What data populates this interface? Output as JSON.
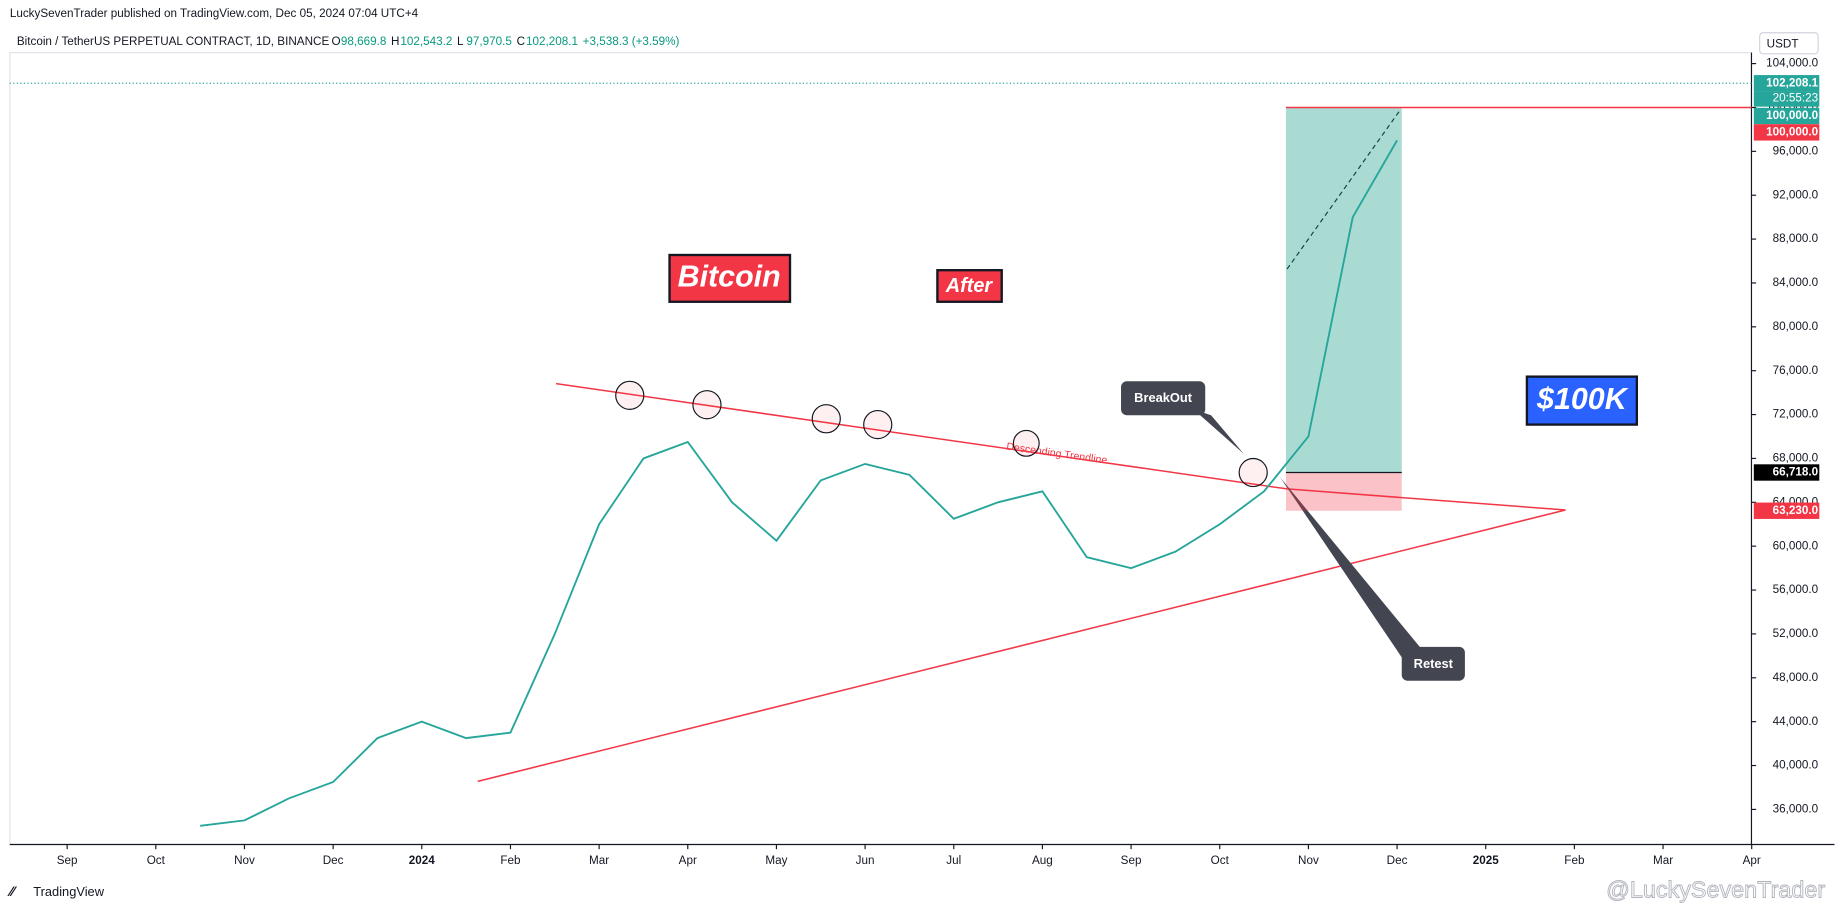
{
  "header": {
    "published": "LuckySevenTrader published on TradingView.com, Dec 05, 2024 07:04 UTC+4",
    "symbol": "Bitcoin / TetherUS PERPETUAL CONTRACT, 1D, BINANCE",
    "ohlc": [
      {
        "key": "O",
        "value": "98,669.8"
      },
      {
        "key": "H",
        "value": "102,543.2"
      },
      {
        "key": "L",
        "value": "97,970.5"
      },
      {
        "key": "C",
        "value": "102,208.1"
      }
    ],
    "change": "+3,538.3 (+3.59%)",
    "currency": "USDT"
  },
  "chart_data": {
    "type": "line",
    "color": "#26a69a",
    "x_labels": [
      "Sep",
      "Oct",
      "Nov",
      "Dec",
      "2024",
      "Feb",
      "Mar",
      "Apr",
      "May",
      "Jun",
      "Jul",
      "Aug",
      "Sep",
      "Oct",
      "Nov",
      "Dec",
      "2025",
      "Feb",
      "Mar",
      "Apr"
    ],
    "values": [
      null,
      null,
      null,
      34500,
      35000,
      37000,
      38500,
      42500,
      44000,
      42500,
      43000,
      52000,
      62000,
      68000,
      69500,
      64000,
      60500,
      66000,
      67500,
      66500,
      62500,
      64000,
      65000,
      59000,
      58000,
      59500,
      62000,
      65000,
      70000,
      90000,
      97000
    ],
    "ylim": [
      32800,
      105000
    ],
    "yticks": [
      {
        "value": 36000,
        "label": "36,000.0"
      },
      {
        "value": 40000,
        "label": "40,000.0"
      },
      {
        "value": 44000,
        "label": "44,000.0"
      },
      {
        "value": 48000,
        "label": "48,000.0"
      },
      {
        "value": 52000,
        "label": "52,000.0"
      },
      {
        "value": 56000,
        "label": "56,000.0"
      },
      {
        "value": 60000,
        "label": "60,000.0"
      },
      {
        "value": 64000,
        "label": "64,000.0"
      },
      {
        "value": 68000,
        "label": "68,000.0"
      },
      {
        "value": 72000,
        "label": "72,000.0"
      },
      {
        "value": 76000,
        "label": "76,000.0"
      },
      {
        "value": 80000,
        "label": "80,000.0"
      },
      {
        "value": 84000,
        "label": "84,000.0"
      },
      {
        "value": 88000,
        "label": "88,000.0"
      },
      {
        "value": 92000,
        "label": "92,000.0"
      },
      {
        "value": 96000,
        "label": "96,000.0"
      },
      {
        "value": 100000,
        "label": "100,000.0"
      },
      {
        "value": 104000,
        "label": "104,000.0"
      }
    ],
    "price_labels": [
      {
        "value": 102208.1,
        "label": "102,208.1",
        "color": "#26a69a"
      },
      {
        "value": 100000,
        "label": "100,000.0",
        "color": "#26a69a"
      },
      {
        "value": 100000,
        "label": "100,000.0",
        "color": "#f23645"
      },
      {
        "value": 66718,
        "label": "66,718.0",
        "color": "#000000"
      },
      {
        "value": 63230,
        "label": "63,230.0",
        "color": "#f23645"
      }
    ],
    "countdown": "20:55:23"
  },
  "annotations": {
    "bitcoin": "Bitcoin",
    "after": "After",
    "target": "$100K",
    "breakout": "BreakOut",
    "retest": "Retest",
    "trendline": "Descending Trendline"
  },
  "footer": {
    "brand": "TradingView",
    "watermark": "@LuckySevenTrader"
  }
}
